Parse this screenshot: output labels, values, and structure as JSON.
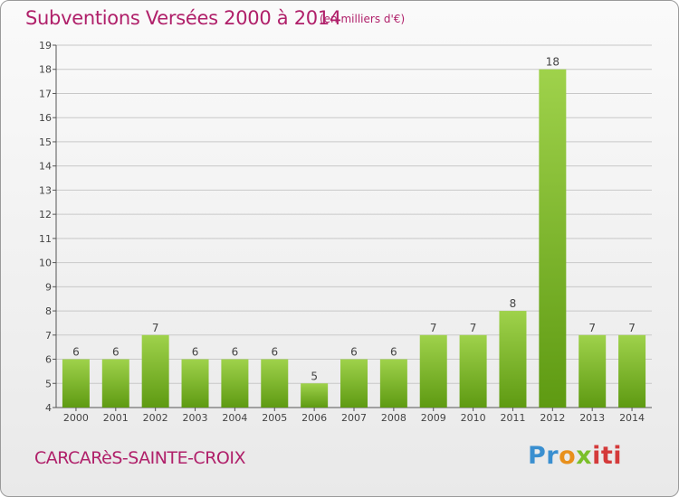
{
  "header": {
    "title": "Subventions Versées 2000 à 2014",
    "unit": "(en milliers d'€)"
  },
  "footer": {
    "place": "CARCARèS-SAINTE-CROIX",
    "logo": "Proxiti",
    "logo_colors": [
      "#3a8fd0",
      "#e8901c",
      "#7bbf2a",
      "#d43a3a"
    ]
  },
  "colors": {
    "bar_light": "#9fd24b",
    "bar_dark": "#5e9a12",
    "grid": "#c8c8c8",
    "title": "#b0206a"
  },
  "chart_data": {
    "type": "bar",
    "title": "Subventions Versées 2000 à 2014",
    "subtitle": "(en milliers d'€)",
    "categories": [
      "2000",
      "2001",
      "2002",
      "2003",
      "2004",
      "2005",
      "2006",
      "2007",
      "2008",
      "2009",
      "2010",
      "2011",
      "2012",
      "2013",
      "2014"
    ],
    "values": [
      6,
      6,
      7,
      6,
      6,
      6,
      5,
      6,
      6,
      7,
      7,
      8,
      18,
      7,
      7
    ],
    "ylim": [
      4,
      19
    ],
    "yticks": [
      4,
      5,
      6,
      7,
      8,
      9,
      10,
      11,
      12,
      13,
      14,
      15,
      16,
      17,
      18,
      19
    ],
    "grid": true,
    "xlabel": "",
    "ylabel": ""
  }
}
